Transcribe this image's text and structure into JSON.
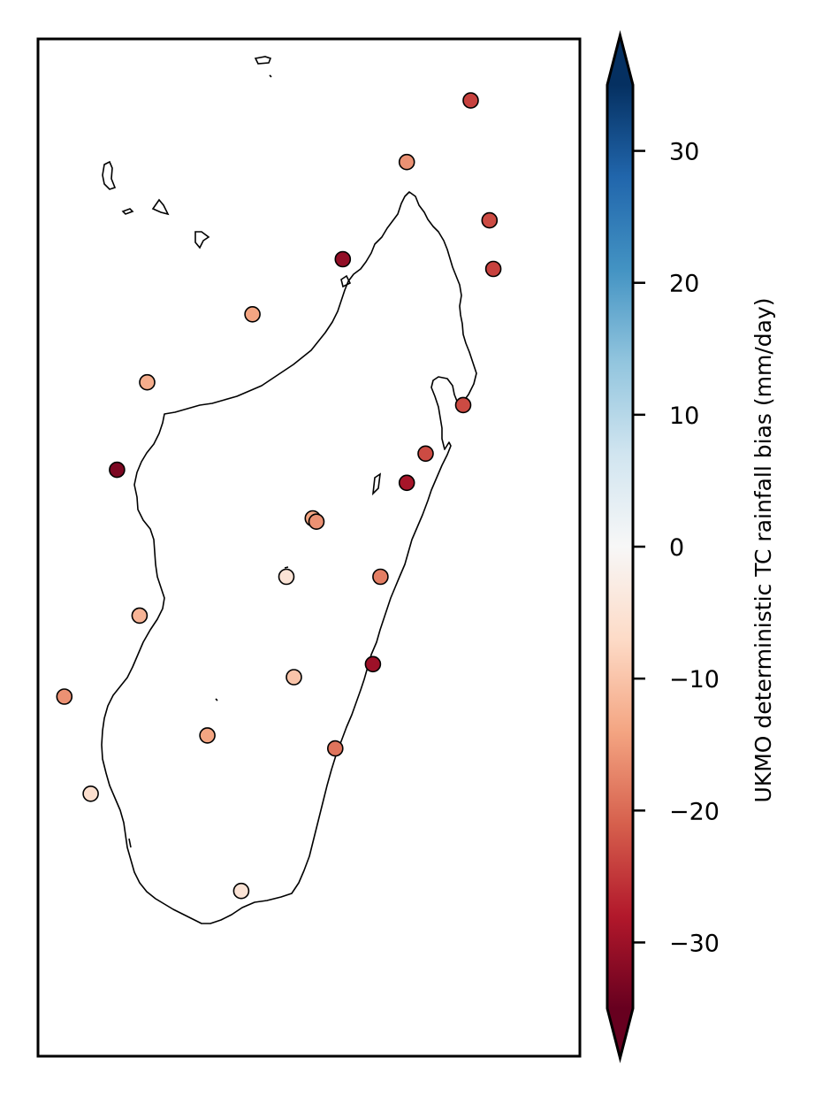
{
  "chart_data": {
    "type": "scatter",
    "title": "",
    "colorbar": {
      "label": "UKMO deterministic TC rainfall bias (mm/day)",
      "colormap": "RdBu",
      "range": [
        -35,
        35
      ],
      "extend": "both",
      "ticks": [
        -30,
        -20,
        -10,
        0,
        10,
        20,
        30
      ],
      "tick_labels": [
        "−30",
        "−20",
        "−10",
        "0",
        "10",
        "20",
        "30"
      ]
    },
    "stations": [
      {
        "lon": 50.15,
        "lat": -12.35,
        "bias": -24
      },
      {
        "lon": 49.3,
        "lat": -13.3,
        "bias": -16
      },
      {
        "lon": 50.4,
        "lat": -14.2,
        "bias": -23
      },
      {
        "lon": 50.45,
        "lat": -14.95,
        "bias": -24
      },
      {
        "lon": 48.45,
        "lat": -14.8,
        "bias": -31
      },
      {
        "lon": 47.25,
        "lat": -15.65,
        "bias": -14
      },
      {
        "lon": 45.85,
        "lat": -16.7,
        "bias": -13
      },
      {
        "lon": 50.05,
        "lat": -17.05,
        "bias": -23
      },
      {
        "lon": 49.55,
        "lat": -17.8,
        "bias": -23
      },
      {
        "lon": 45.45,
        "lat": -18.05,
        "bias": -33
      },
      {
        "lon": 49.3,
        "lat": -18.25,
        "bias": -29
      },
      {
        "lon": 48.05,
        "lat": -18.8,
        "bias": -14
      },
      {
        "lon": 48.1,
        "lat": -18.85,
        "bias": -16
      },
      {
        "lon": 47.7,
        "lat": -19.7,
        "bias": -5
      },
      {
        "lon": 48.95,
        "lat": -19.7,
        "bias": -18
      },
      {
        "lon": 45.75,
        "lat": -20.3,
        "bias": -12
      },
      {
        "lon": 48.85,
        "lat": -21.05,
        "bias": -30
      },
      {
        "lon": 47.8,
        "lat": -21.25,
        "bias": -10
      },
      {
        "lon": 44.75,
        "lat": -21.55,
        "bias": -16
      },
      {
        "lon": 46.65,
        "lat": -22.15,
        "bias": -14
      },
      {
        "lon": 48.35,
        "lat": -22.35,
        "bias": -19
      },
      {
        "lon": 45.1,
        "lat": -23.05,
        "bias": -6
      },
      {
        "lon": 47.1,
        "lat": -24.55,
        "bias": -5
      }
    ],
    "extent": {
      "lon": [
        44.4,
        51.6
      ],
      "lat": [
        -27.1,
        -11.4
      ]
    },
    "grid": false,
    "legend": "none"
  }
}
